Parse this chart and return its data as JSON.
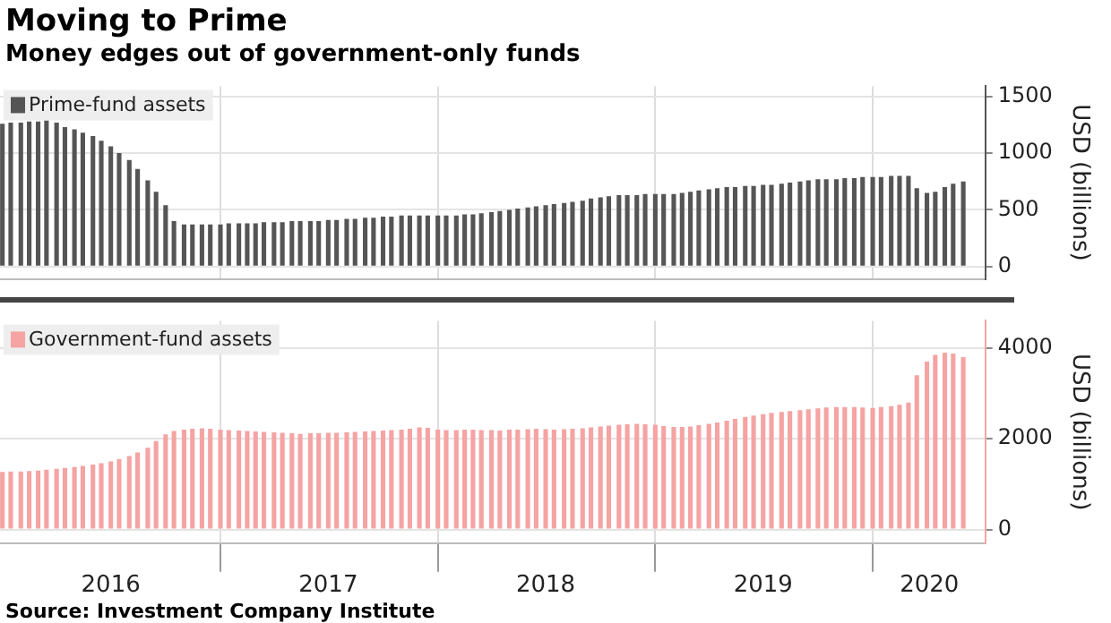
{
  "chart_data": [
    {
      "type": "bar",
      "title": "Moving to Prime",
      "subtitle": "Money edges out of government-only funds",
      "x": [
        "2016-01-01",
        "2016-01-15",
        "2016-02-01",
        "2016-02-15",
        "2016-03-01",
        "2016-03-15",
        "2016-04-01",
        "2016-04-15",
        "2016-05-01",
        "2016-05-15",
        "2016-06-01",
        "2016-06-15",
        "2016-07-01",
        "2016-07-15",
        "2016-08-01",
        "2016-08-15",
        "2016-09-01",
        "2016-09-15",
        "2016-10-01",
        "2016-10-15",
        "2016-11-01",
        "2016-11-15",
        "2016-12-01",
        "2016-12-15",
        "2017-01-01",
        "2017-01-15",
        "2017-02-01",
        "2017-02-15",
        "2017-03-01",
        "2017-03-15",
        "2017-04-01",
        "2017-04-15",
        "2017-05-01",
        "2017-05-15",
        "2017-06-01",
        "2017-06-15",
        "2017-07-01",
        "2017-07-15",
        "2017-08-01",
        "2017-08-15",
        "2017-09-01",
        "2017-09-15",
        "2017-10-01",
        "2017-10-15",
        "2017-11-01",
        "2017-11-15",
        "2017-12-01",
        "2017-12-15",
        "2018-01-01",
        "2018-01-15",
        "2018-02-01",
        "2018-02-15",
        "2018-03-01",
        "2018-03-15",
        "2018-04-01",
        "2018-04-15",
        "2018-05-01",
        "2018-05-15",
        "2018-06-01",
        "2018-06-15",
        "2018-07-01",
        "2018-07-15",
        "2018-08-01",
        "2018-08-15",
        "2018-09-01",
        "2018-09-15",
        "2018-10-01",
        "2018-10-15",
        "2018-11-01",
        "2018-11-15",
        "2018-12-01",
        "2018-12-15",
        "2019-01-01",
        "2019-01-15",
        "2019-02-01",
        "2019-02-15",
        "2019-03-01",
        "2019-03-15",
        "2019-04-01",
        "2019-04-15",
        "2019-05-01",
        "2019-05-15",
        "2019-06-01",
        "2019-06-15",
        "2019-07-01",
        "2019-07-15",
        "2019-08-01",
        "2019-08-15",
        "2019-09-01",
        "2019-09-15",
        "2019-10-01",
        "2019-10-15",
        "2019-11-01",
        "2019-11-15",
        "2019-12-01",
        "2019-12-15",
        "2020-01-01",
        "2020-01-15",
        "2020-02-01",
        "2020-02-15",
        "2020-03-01",
        "2020-03-15",
        "2020-04-01",
        "2020-04-15",
        "2020-05-01",
        "2020-05-15",
        "2020-06-01"
      ],
      "series": [
        {
          "name": "Prime-fund assets",
          "color": "#555555",
          "values": [
            1260,
            1270,
            1270,
            1280,
            1280,
            1290,
            1270,
            1230,
            1210,
            1180,
            1150,
            1110,
            1060,
            1000,
            940,
            860,
            760,
            660,
            540,
            400,
            370,
            370,
            370,
            370,
            370,
            380,
            380,
            380,
            380,
            390,
            390,
            390,
            400,
            400,
            400,
            400,
            410,
            410,
            420,
            420,
            430,
            430,
            440,
            440,
            450,
            450,
            450,
            450,
            450,
            450,
            450,
            460,
            460,
            470,
            480,
            490,
            500,
            510,
            520,
            530,
            540,
            550,
            560,
            570,
            580,
            600,
            610,
            620,
            630,
            630,
            630,
            640,
            640,
            640,
            640,
            650,
            660,
            670,
            680,
            690,
            700,
            700,
            710,
            710,
            720,
            720,
            730,
            740,
            750,
            760,
            770,
            770,
            770,
            780,
            780,
            790,
            790,
            790,
            800,
            800,
            800,
            690,
            650,
            660,
            700,
            730,
            750
          ]
        }
      ],
      "xlim": [
        "2015-12-28",
        "2020-07-08"
      ],
      "xticks": [
        {
          "value": "2017-01-01",
          "label": null
        },
        {
          "value": "2018-01-01",
          "label": null
        },
        {
          "value": "2019-01-01",
          "label": null
        },
        {
          "value": "2020-01-01",
          "label": null
        }
      ],
      "ylim": [
        -110,
        1590
      ],
      "yticks": [
        0,
        500,
        1000,
        1500
      ],
      "ylabel": "USD (billions)",
      "grid": true,
      "legend": "top left",
      "tick_labels": "y"
    },
    {
      "type": "bar",
      "x": [
        "2016-01-01",
        "2016-01-15",
        "2016-02-01",
        "2016-02-15",
        "2016-03-01",
        "2016-03-15",
        "2016-04-01",
        "2016-04-15",
        "2016-05-01",
        "2016-05-15",
        "2016-06-01",
        "2016-06-15",
        "2016-07-01",
        "2016-07-15",
        "2016-08-01",
        "2016-08-15",
        "2016-09-01",
        "2016-09-15",
        "2016-10-01",
        "2016-10-15",
        "2016-11-01",
        "2016-11-15",
        "2016-12-01",
        "2016-12-15",
        "2017-01-01",
        "2017-01-15",
        "2017-02-01",
        "2017-02-15",
        "2017-03-01",
        "2017-03-15",
        "2017-04-01",
        "2017-04-15",
        "2017-05-01",
        "2017-05-15",
        "2017-06-01",
        "2017-06-15",
        "2017-07-01",
        "2017-07-15",
        "2017-08-01",
        "2017-08-15",
        "2017-09-01",
        "2017-09-15",
        "2017-10-01",
        "2017-10-15",
        "2017-11-01",
        "2017-11-15",
        "2017-12-01",
        "2017-12-15",
        "2018-01-01",
        "2018-01-15",
        "2018-02-01",
        "2018-02-15",
        "2018-03-01",
        "2018-03-15",
        "2018-04-01",
        "2018-04-15",
        "2018-05-01",
        "2018-05-15",
        "2018-06-01",
        "2018-06-15",
        "2018-07-01",
        "2018-07-15",
        "2018-08-01",
        "2018-08-15",
        "2018-09-01",
        "2018-09-15",
        "2018-10-01",
        "2018-10-15",
        "2018-11-01",
        "2018-11-15",
        "2018-12-01",
        "2018-12-15",
        "2019-01-01",
        "2019-01-15",
        "2019-02-01",
        "2019-02-15",
        "2019-03-01",
        "2019-03-15",
        "2019-04-01",
        "2019-04-15",
        "2019-05-01",
        "2019-05-15",
        "2019-06-01",
        "2019-06-15",
        "2019-07-01",
        "2019-07-15",
        "2019-08-01",
        "2019-08-15",
        "2019-09-01",
        "2019-09-15",
        "2019-10-01",
        "2019-10-15",
        "2019-11-01",
        "2019-11-15",
        "2019-12-01",
        "2019-12-15",
        "2020-01-01",
        "2020-01-15",
        "2020-02-01",
        "2020-02-15",
        "2020-03-01",
        "2020-03-15",
        "2020-04-01",
        "2020-04-15",
        "2020-05-01",
        "2020-05-15",
        "2020-06-01"
      ],
      "series": [
        {
          "name": "Government-fund assets",
          "color": "#f5a3a3",
          "values": [
            1270,
            1280,
            1280,
            1290,
            1300,
            1320,
            1340,
            1360,
            1380,
            1400,
            1430,
            1460,
            1500,
            1550,
            1620,
            1700,
            1800,
            1950,
            2100,
            2170,
            2200,
            2220,
            2230,
            2220,
            2200,
            2190,
            2180,
            2170,
            2160,
            2150,
            2140,
            2130,
            2120,
            2110,
            2120,
            2120,
            2130,
            2130,
            2140,
            2150,
            2160,
            2170,
            2180,
            2190,
            2200,
            2220,
            2250,
            2240,
            2200,
            2190,
            2190,
            2200,
            2200,
            2190,
            2190,
            2180,
            2200,
            2200,
            2210,
            2220,
            2210,
            2200,
            2210,
            2220,
            2230,
            2250,
            2270,
            2290,
            2310,
            2320,
            2330,
            2320,
            2310,
            2280,
            2260,
            2260,
            2270,
            2300,
            2330,
            2360,
            2400,
            2440,
            2480,
            2510,
            2540,
            2570,
            2590,
            2610,
            2630,
            2650,
            2670,
            2690,
            2700,
            2700,
            2700,
            2690,
            2680,
            2700,
            2720,
            2750,
            2800,
            3400,
            3700,
            3850,
            3900,
            3880,
            3800
          ]
        }
      ],
      "xlim": [
        "2015-12-28",
        "2020-07-08"
      ],
      "xticks": [
        {
          "value": "2016-07-01",
          "label": "2016"
        },
        {
          "value": "2017-01-01",
          "label": null
        },
        {
          "value": "2017-07-01",
          "label": "2017"
        },
        {
          "value": "2018-01-01",
          "label": null
        },
        {
          "value": "2018-07-01",
          "label": "2018"
        },
        {
          "value": "2019-01-01",
          "label": null
        },
        {
          "value": "2019-07-01",
          "label": "2019"
        },
        {
          "value": "2020-01-01",
          "label": null
        },
        {
          "value": "2020-04-05",
          "label": "2020"
        }
      ],
      "ylim": [
        -300,
        4600
      ],
      "yticks": [
        0,
        2000,
        4000
      ],
      "ylabel": "USD (billions)",
      "grid": true,
      "legend": "top left",
      "annotations": [
        "Source: Investment Company Institute"
      ]
    }
  ]
}
